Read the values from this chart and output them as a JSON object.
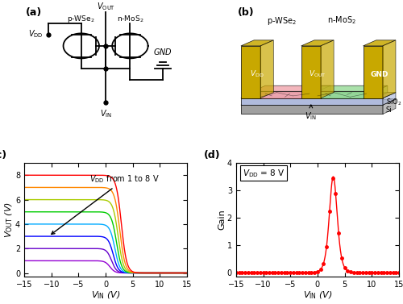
{
  "panel_c": {
    "xlabel": "$V_{\\mathrm{IN}}$ (V)",
    "ylabel": "$V_{\\mathrm{OUT}}$ (V)",
    "label": "(c)",
    "xlim": [
      -15,
      15
    ],
    "ylim": [
      -0.3,
      9.0
    ],
    "yticks": [
      0,
      2,
      4,
      6,
      8
    ],
    "xticks": [
      -15,
      -10,
      -5,
      0,
      5,
      10,
      15
    ],
    "vdd_values": [
      1,
      2,
      3,
      4,
      5,
      6,
      7,
      8
    ],
    "colors": [
      "#9400D3",
      "#6600CC",
      "#0000FF",
      "#00AAFF",
      "#00CC00",
      "#AACC00",
      "#FF8800",
      "#FF0000"
    ],
    "annotation_text": "$V_{\\mathrm{DD}}$ from 1 to 8 V"
  },
  "panel_d": {
    "xlabel": "$V_{\\mathrm{IN}}$ (V)",
    "ylabel": "Gain",
    "label": "(d)",
    "xlim": [
      -15,
      15
    ],
    "ylim": [
      -0.15,
      4.0
    ],
    "yticks": [
      0,
      1,
      2,
      3,
      4
    ],
    "xticks": [
      -15,
      -10,
      -5,
      0,
      5,
      10,
      15
    ],
    "annotation_text": "$V_{\\mathrm{DD}}$ = 8 V",
    "color": "#FF0000"
  },
  "bg_color": "#ffffff"
}
